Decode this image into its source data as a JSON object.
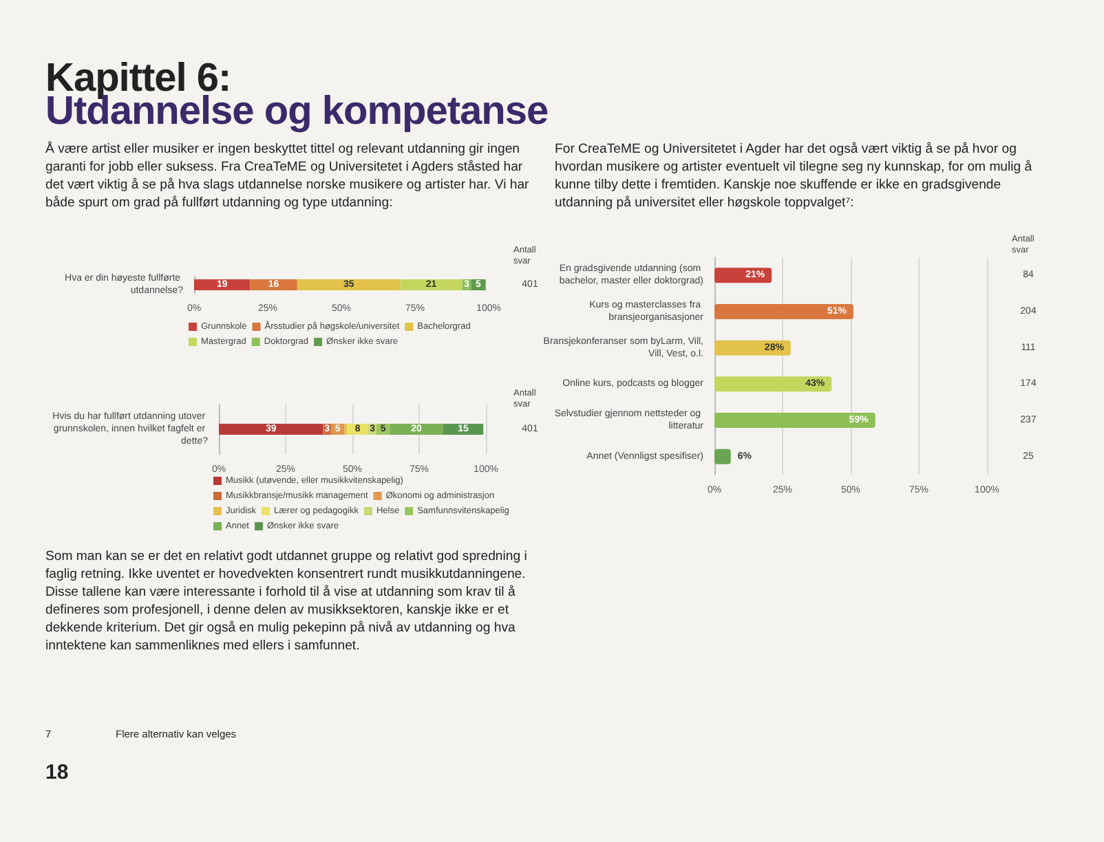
{
  "chart_data": [
    {
      "type": "other",
      "title": "Kapittel 6:",
      "subtitle": "Utdannelse og kompetanse",
      "annotations": [
        "Å være artist eller musiker er ingen beskyttet tittel og relevant utdanning gir ingen garanti for jobb eller suksess. Fra CreaTeME og Universitetet i Agders ståsted har det vært viktig å se på hva slags utdannelse norske musikere og artister har. Vi har både spurt om grad på fullført utdanning og type utdanning:",
        "For CreaTeME og Universitetet i Agder har det også vært viktig å se på hvor og hvordan musikere og artister eventuelt vil tilegne seg ny kunnskap, for om mulig å kunne tilby dette i fremtiden. Kanskje noe skuffende er ikke en gradsgivende utdanning på universitet eller høgskole toppvalget⁷:",
        "Som man kan se er det en relativt godt utdannet gruppe og relativt god spredning i faglig retning. Ikke uventet er hovedvekten konsentrert rundt musikkutdanningene. Disse tallene kan være interessante i forhold til å vise at utdanning som krav til å defineres som profesjonell, i denne delen av musikksektoren, kanskje ikke er et dekkende kriterium. Det gir også en mulig pekepinn på nivå av utdanning og hva inntektene kan sammenliknes med ellers i samfunnet.",
        "7",
        "Flere alternativ kan velges",
        "18"
      ]
    },
    {
      "type": "bar",
      "orientation": "horizontal",
      "stacked": true,
      "categories": [
        "Hva er din høyeste fullførte utdannelse?"
      ],
      "series": [
        {
          "name": "Grunnskole",
          "color": "#c8423b",
          "values": [
            19
          ]
        },
        {
          "name": "Årsstudier på høgskole/universitet",
          "color": "#d9773f",
          "values": [
            16
          ]
        },
        {
          "name": "Bachelorgrad",
          "color": "#e2c24a",
          "values": [
            35
          ]
        },
        {
          "name": "Mastergrad",
          "color": "#c5d65e",
          "values": [
            21
          ]
        },
        {
          "name": "Doktorgrad",
          "color": "#8dbf56",
          "values": [
            3
          ]
        },
        {
          "name": "Ønsker ikke svare",
          "color": "#5f9a4e",
          "values": [
            5
          ]
        }
      ],
      "xlim": [
        0,
        100
      ],
      "xticks": [
        {
          "value": 0,
          "label": "0%"
        },
        {
          "value": 25,
          "label": "25%"
        },
        {
          "value": 50,
          "label": "50%"
        },
        {
          "value": 75,
          "label": "75%"
        },
        {
          "value": 100,
          "label": "100%"
        }
      ],
      "legend": "bottom left",
      "data_labels": true,
      "annotations": [
        "Antall svar",
        "401"
      ]
    },
    {
      "type": "bar",
      "orientation": "horizontal",
      "stacked": true,
      "categories": [
        "Hvis du har fullført utdanning utover grunnskolen, innen hvilket fagfelt er dette?"
      ],
      "series": [
        {
          "name": "Musikk (utøvende, eller musikkvitenskapelig)",
          "color": "#b83a36",
          "values": [
            39
          ],
          "value_labels": [
            "39"
          ]
        },
        {
          "name": "Musikkbransje/musikk management",
          "color": "#cc6a3c",
          "values": [
            3
          ],
          "value_labels": [
            "3"
          ]
        },
        {
          "name": "Økonomi og administrasjon",
          "color": "#e0974e",
          "values": [
            5
          ],
          "value_labels": [
            "5"
          ]
        },
        {
          "name": "Juridisk",
          "color": "#e6bf4c",
          "values": [
            1
          ],
          "value_labels": [
            null
          ]
        },
        {
          "name": "Lærer og pedagogikk",
          "color": "#e8e266",
          "values": [
            8
          ],
          "value_labels": [
            "8"
          ]
        },
        {
          "name": "Helse",
          "color": "#c9d873",
          "values": [
            3
          ],
          "value_labels": [
            "3"
          ]
        },
        {
          "name": "Samfunnsvitenskapelig",
          "color": "#9cc560",
          "values": [
            5
          ],
          "value_labels": [
            "5"
          ]
        },
        {
          "name": "Annet",
          "color": "#7bb055",
          "values": [
            20
          ],
          "value_labels": [
            "20"
          ]
        },
        {
          "name": "Ønsker ikke svare",
          "color": "#5a9650",
          "values": [
            15
          ],
          "value_labels": [
            "15"
          ]
        }
      ],
      "xlim": [
        0,
        100
      ],
      "xticks": [
        {
          "value": 0,
          "label": "0%"
        },
        {
          "value": 25,
          "label": "25%"
        },
        {
          "value": 50,
          "label": "50%"
        },
        {
          "value": 75,
          "label": "75%"
        },
        {
          "value": 100,
          "label": "100%"
        }
      ],
      "grid": "x",
      "legend": "bottom left",
      "annotations": [
        "Antall svar",
        "401"
      ]
    },
    {
      "type": "bar",
      "orientation": "horizontal",
      "categories": [
        "En gradsgivende utdanning (som bachelor, master eller doktorgrad)",
        "Kurs og masterclasses fra bransjeorganisasjoner",
        "Bransjekonferanser som byLarm, Vill, Vill, Vest, o.l.",
        "Online kurs, podcasts og blogger",
        "Selvstudier gjennom nettsteder og litteratur",
        "Annet (Vennligst spesifiser)"
      ],
      "values": [
        21,
        51,
        28,
        43,
        59,
        6
      ],
      "colors": [
        "#c8423b",
        "#d9773f",
        "#e2c24a",
        "#c5d65e",
        "#8dbf56",
        "#6aa553"
      ],
      "value_labels": [
        "21%",
        "51%",
        "28%",
        "43%",
        "59%",
        "6%"
      ],
      "xlim": [
        0,
        100
      ],
      "xticks": [
        {
          "value": 0,
          "label": "0%"
        },
        {
          "value": 25,
          "label": "25%"
        },
        {
          "value": 50,
          "label": "50%"
        },
        {
          "value": 75,
          "label": "75%"
        },
        {
          "value": 100,
          "label": "100%"
        }
      ],
      "grid": "x",
      "annotations": [
        "Antall svar",
        "84",
        "204",
        "111",
        "174",
        "237",
        "25"
      ]
    }
  ]
}
